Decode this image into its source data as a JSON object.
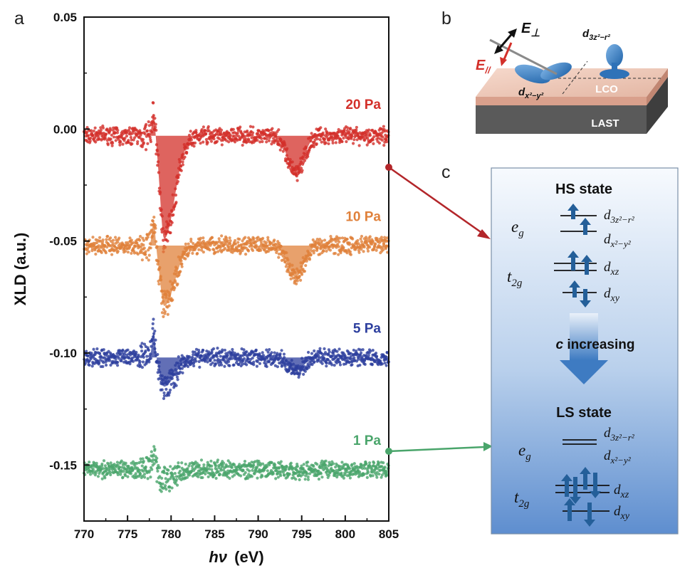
{
  "panels": {
    "a": "a",
    "b": "b",
    "c": "c"
  },
  "chart_data": {
    "type": "scatter",
    "title": "",
    "xlabel_italic": "hν",
    "xlabel_unit": "(eV)",
    "ylabel": "XLD (a.u.)",
    "xlim": [
      770,
      805
    ],
    "ylim": [
      -0.175,
      0.05
    ],
    "xticks": [
      770,
      775,
      780,
      785,
      790,
      795,
      800,
      805
    ],
    "yticks": [
      0.05,
      0.0,
      -0.05,
      -0.1,
      -0.15
    ],
    "ytick_labels": [
      "0.05",
      "0.00",
      "-0.05",
      "-0.10",
      "-0.15"
    ],
    "series": [
      {
        "name": "20 Pa",
        "color": "#d3302a",
        "baseline": -0.003,
        "filled": true,
        "peaks": [
          {
            "x": 778.0,
            "y": 0.008
          },
          {
            "x": 779.2,
            "y": -0.049
          },
          {
            "x": 794.3,
            "y": -0.02
          }
        ]
      },
      {
        "name": "10 Pa",
        "color": "#e0813b",
        "baseline": -0.052,
        "filled": true,
        "peaks": [
          {
            "x": 778.0,
            "y": -0.04
          },
          {
            "x": 779.2,
            "y": -0.079
          },
          {
            "x": 794.3,
            "y": -0.066
          }
        ]
      },
      {
        "name": "5 Pa",
        "color": "#2d3f9e",
        "baseline": -0.102,
        "filled": true,
        "peaks": [
          {
            "x": 778.0,
            "y": -0.09
          },
          {
            "x": 779.2,
            "y": -0.115
          },
          {
            "x": 794.3,
            "y": -0.108
          }
        ]
      },
      {
        "name": "1 Pa",
        "color": "#4aa56b",
        "baseline": -0.152,
        "filled": false,
        "peaks": [
          {
            "x": 778.0,
            "y": -0.145
          },
          {
            "x": 779.2,
            "y": -0.157
          },
          {
            "x": 794.3,
            "y": -0.153
          }
        ]
      }
    ]
  },
  "schematic": {
    "e_perp": "E",
    "e_perp_sub": "⊥",
    "e_par": "E",
    "e_par_sub": "//",
    "orbital_z2": "d",
    "orbital_z2_sub": "3z²−r²",
    "orbital_x2": "d",
    "orbital_x2_sub": "x²−y²",
    "layer_top": "LCO",
    "layer_bottom": "LAST"
  },
  "diagram": {
    "hs_title": "HS state",
    "ls_title": "LS state",
    "arrow_italic": "c",
    "arrow_text": " increasing",
    "eg_main": "e",
    "eg_sub": "g",
    "t2g_main": "t",
    "t2g_sub": "2g",
    "d_main": "d",
    "d_z2_sub": "3z²−r²",
    "d_x2_sub": "x²−y²",
    "d_xz_sub": "xz",
    "d_xy_sub": "xy"
  },
  "connector_colors": {
    "red": "#b3262a",
    "green": "#4aa56b"
  },
  "panel_c_gradient": [
    "#f4f8fd",
    "#5f8fcf"
  ]
}
